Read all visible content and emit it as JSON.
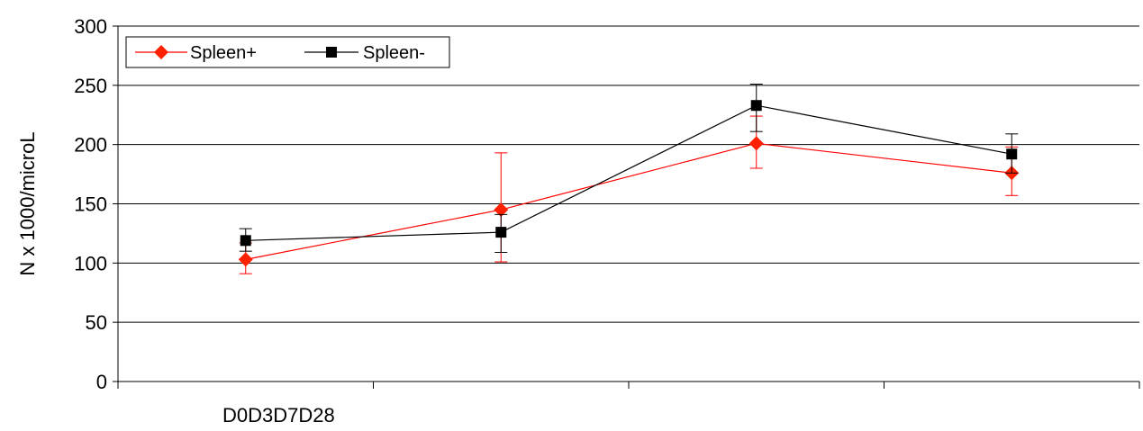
{
  "chart_data": {
    "type": "line",
    "ylabel": "N x 1000/microL",
    "xlabel": "",
    "x_tick_label": "D0D3D7D28",
    "categories": [
      "D0",
      "D3",
      "D7",
      "D28"
    ],
    "ylim": [
      0,
      300
    ],
    "yticks": [
      0,
      50,
      100,
      150,
      200,
      250,
      300
    ],
    "grid": true,
    "legend_position": "top-left",
    "series": [
      {
        "name": "Spleen+",
        "color": "#ff0000",
        "marker_color": "#ff2000",
        "marker": "diamond",
        "values": [
          103,
          145,
          201,
          176
        ],
        "error_low": [
          91,
          101,
          180,
          157
        ],
        "error_high": [
          117,
          193,
          224,
          198
        ]
      },
      {
        "name": "Spleen-",
        "color": "#000000",
        "marker_color": "#000000",
        "marker": "square",
        "values": [
          119,
          126,
          233,
          192
        ],
        "error_low": [
          110,
          109,
          211,
          176
        ],
        "error_high": [
          129,
          141,
          251,
          209
        ]
      }
    ]
  }
}
